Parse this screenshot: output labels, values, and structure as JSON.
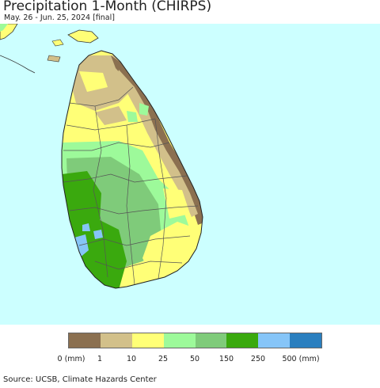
{
  "header": {
    "title": "Precipitation 1-Month (CHIRPS)",
    "subtitle": "May. 26 - Jun. 25, 2024 [final]"
  },
  "map": {
    "region": "Sri Lanka",
    "sea_color": "#ccffff",
    "border_color": "#222222"
  },
  "legend": {
    "colors": [
      "#8b7050",
      "#d2c08a",
      "#ffff77",
      "#9dfa9a",
      "#7fcb7a",
      "#3aa90e",
      "#86c5f8",
      "#2a7fbf"
    ],
    "labels": [
      "0 (mm)",
      "1",
      "10",
      "25",
      "50",
      "150",
      "250",
      "500 (mm)"
    ]
  },
  "footer": {
    "source": "Source: UCSB, Climate Hazards Center"
  }
}
